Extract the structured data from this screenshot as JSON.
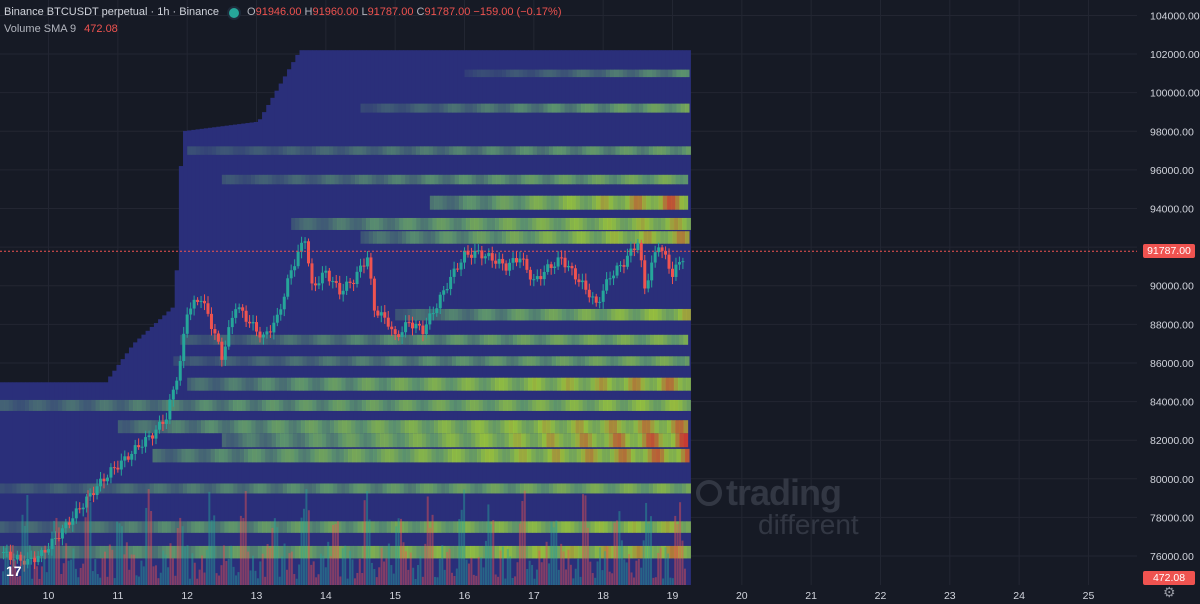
{
  "header": {
    "symbol": "Binance BTCUSDT perpetual · 1h · Binance",
    "o_label": "O",
    "o_value": "91946.00",
    "h_label": "H",
    "h_value": "91960.00",
    "l_label": "L",
    "l_value": "91787.00",
    "c_label": "C",
    "c_value": "91787.00",
    "change": "−159.00 (−0.17%)",
    "volume_label": "Volume SMA 9",
    "volume_value": "472.08"
  },
  "price_tag": "91787.00",
  "volume_tag": "472.08",
  "watermark": {
    "line1": "trading",
    "line2": "different"
  },
  "tv_logo": "17",
  "colors": {
    "background": "#161a25",
    "grid": "#232632",
    "up": "#26a69a",
    "down": "#ef5350",
    "heat_low": "#2a2f7a",
    "heat_mid": "#5f9a6e",
    "heat_high": "#9ccc3a",
    "heat_peak": "#d83a2c"
  },
  "chart_data": {
    "type": "heatmap",
    "title": "",
    "xlabel": "",
    "ylabel": "",
    "x_ticks": [
      "10",
      "11",
      "12",
      "13",
      "14",
      "15",
      "16",
      "17",
      "18",
      "19",
      "20",
      "21",
      "22",
      "23",
      "24",
      "25"
    ],
    "y_ticks": [
      "76000.00",
      "78000.00",
      "80000.00",
      "82000.00",
      "84000.00",
      "86000.00",
      "88000.00",
      "90000.00",
      "92000.00",
      "94000.00",
      "96000.00",
      "98000.00",
      "100000.00",
      "102000.00",
      "104000.00"
    ],
    "ylim": [
      74500,
      104800
    ],
    "xlim": [
      9.3,
      25.7
    ],
    "last_price": 91787,
    "price_path": [
      {
        "d": 9.3,
        "p": 76200
      },
      {
        "d": 9.5,
        "p": 75900
      },
      {
        "d": 9.7,
        "p": 75700
      },
      {
        "d": 9.9,
        "p": 76100
      },
      {
        "d": 10.1,
        "p": 76900
      },
      {
        "d": 10.3,
        "p": 77800
      },
      {
        "d": 10.5,
        "p": 78700
      },
      {
        "d": 10.7,
        "p": 79600
      },
      {
        "d": 10.9,
        "p": 80400
      },
      {
        "d": 11.1,
        "p": 81000
      },
      {
        "d": 11.3,
        "p": 81700
      },
      {
        "d": 11.5,
        "p": 82300
      },
      {
        "d": 11.7,
        "p": 83200
      },
      {
        "d": 11.9,
        "p": 86000
      },
      {
        "d": 12.0,
        "p": 88700
      },
      {
        "d": 12.2,
        "p": 89400
      },
      {
        "d": 12.4,
        "p": 87500
      },
      {
        "d": 12.5,
        "p": 86300
      },
      {
        "d": 12.7,
        "p": 89000
      },
      {
        "d": 12.9,
        "p": 88100
      },
      {
        "d": 13.1,
        "p": 87300
      },
      {
        "d": 13.3,
        "p": 88300
      },
      {
        "d": 13.5,
        "p": 90800
      },
      {
        "d": 13.7,
        "p": 92500
      },
      {
        "d": 13.8,
        "p": 89900
      },
      {
        "d": 14.0,
        "p": 90700
      },
      {
        "d": 14.2,
        "p": 89700
      },
      {
        "d": 14.4,
        "p": 90300
      },
      {
        "d": 14.6,
        "p": 91500
      },
      {
        "d": 14.7,
        "p": 88800
      },
      {
        "d": 14.9,
        "p": 88100
      },
      {
        "d": 15.0,
        "p": 87300
      },
      {
        "d": 15.2,
        "p": 88100
      },
      {
        "d": 15.4,
        "p": 87700
      },
      {
        "d": 15.6,
        "p": 89000
      },
      {
        "d": 15.8,
        "p": 90400
      },
      {
        "d": 16.0,
        "p": 91600
      },
      {
        "d": 16.2,
        "p": 91700
      },
      {
        "d": 16.4,
        "p": 91400
      },
      {
        "d": 16.6,
        "p": 91000
      },
      {
        "d": 16.8,
        "p": 91500
      },
      {
        "d": 17.0,
        "p": 90200
      },
      {
        "d": 17.2,
        "p": 90900
      },
      {
        "d": 17.4,
        "p": 91400
      },
      {
        "d": 17.6,
        "p": 90500
      },
      {
        "d": 17.8,
        "p": 89600
      },
      {
        "d": 17.9,
        "p": 89000
      },
      {
        "d": 18.1,
        "p": 90500
      },
      {
        "d": 18.3,
        "p": 91200
      },
      {
        "d": 18.5,
        "p": 92300
      },
      {
        "d": 18.6,
        "p": 89900
      },
      {
        "d": 18.8,
        "p": 92200
      },
      {
        "d": 19.0,
        "p": 90600
      },
      {
        "d": 19.2,
        "p": 91787
      }
    ],
    "liquidity_bands": [
      {
        "price": 76200,
        "strength": 0.85,
        "start": 9.3
      },
      {
        "price": 77500,
        "strength": 0.75,
        "start": 9.3
      },
      {
        "price": 79500,
        "strength": 0.6,
        "start": 9.3
      },
      {
        "price": 81200,
        "strength": 0.95,
        "start": 11.5
      },
      {
        "price": 82000,
        "strength": 1.0,
        "start": 12.5
      },
      {
        "price": 82700,
        "strength": 0.9,
        "start": 11.0
      },
      {
        "price": 83800,
        "strength": 0.7,
        "start": 9.3
      },
      {
        "price": 84900,
        "strength": 0.9,
        "start": 12.0
      },
      {
        "price": 86100,
        "strength": 0.55,
        "start": 11.8
      },
      {
        "price": 87200,
        "strength": 0.6,
        "start": 11.9
      },
      {
        "price": 88500,
        "strength": 0.75,
        "start": 15.0
      },
      {
        "price": 92500,
        "strength": 0.85,
        "start": 14.5
      },
      {
        "price": 93200,
        "strength": 0.8,
        "start": 13.5
      },
      {
        "price": 94300,
        "strength": 1.0,
        "start": 15.5
      },
      {
        "price": 95500,
        "strength": 0.55,
        "start": 12.5
      },
      {
        "price": 97000,
        "strength": 0.45,
        "start": 12.0
      },
      {
        "price": 99200,
        "strength": 0.5,
        "start": 14.5
      },
      {
        "price": 101000,
        "strength": 0.35,
        "start": 16.0
      }
    ],
    "coverage_top": [
      {
        "d": 9.3,
        "p": 85000
      },
      {
        "d": 10.8,
        "p": 85000
      },
      {
        "d": 11.2,
        "p": 87000
      },
      {
        "d": 11.8,
        "p": 89000
      },
      {
        "d": 11.9,
        "p": 98000
      },
      {
        "d": 13.0,
        "p": 98500
      },
      {
        "d": 13.6,
        "p": 102200
      },
      {
        "d": 19.2,
        "p": 102200
      }
    ],
    "coverage_bottom": 74500,
    "data_end": 19.2,
    "volume_note": "Volume SMA 9"
  }
}
